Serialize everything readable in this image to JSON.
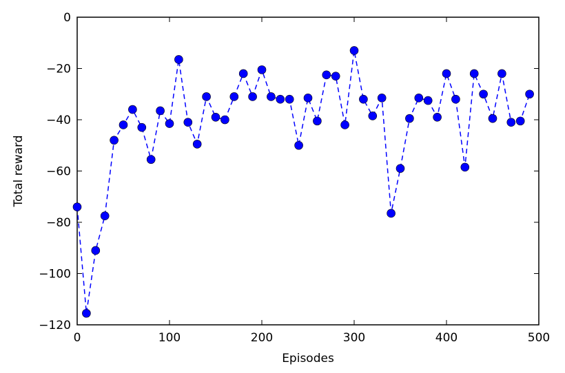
{
  "chart_data": {
    "type": "line",
    "title": "",
    "xlabel": "Episodes",
    "ylabel": "Total reward",
    "xlim": [
      0,
      500
    ],
    "ylim": [
      -120,
      0
    ],
    "xticks": [
      "0",
      "100",
      "200",
      "300",
      "400",
      "500"
    ],
    "yticks": [
      "0",
      "−20",
      "−40",
      "−60",
      "−80",
      "−100",
      "−120"
    ],
    "grid": false,
    "legend": "none",
    "series": [
      {
        "color": "#0000ff",
        "line_style": "dashed",
        "marker": "circle",
        "x": [
          0,
          10,
          20,
          30,
          40,
          50,
          60,
          70,
          80,
          90,
          100,
          110,
          120,
          130,
          140,
          150,
          160,
          170,
          180,
          190,
          200,
          210,
          220,
          230,
          240,
          250,
          260,
          270,
          280,
          290,
          300,
          310,
          320,
          330,
          340,
          350,
          360,
          370,
          380,
          390,
          400,
          410,
          420,
          430,
          440,
          450,
          460,
          470,
          480,
          490
        ],
        "y": [
          -74,
          -115.5,
          -91,
          -77.5,
          -48,
          -42,
          -36,
          -43,
          -55.5,
          -36.5,
          -41.5,
          -16.5,
          -41,
          -49.5,
          -31,
          -39,
          -40,
          -31,
          -22,
          -31,
          -20.5,
          -31,
          -32,
          -32,
          -50,
          -31.5,
          -40.5,
          -22.5,
          -23,
          -42,
          -13,
          -32,
          -38.5,
          -31.5,
          -76.5,
          -59,
          -39.5,
          -31.5,
          -32.5,
          -39,
          -22,
          -32,
          -58.5,
          -22,
          -30,
          -39.5,
          -22,
          -41,
          -40.5,
          -30
        ]
      }
    ]
  }
}
